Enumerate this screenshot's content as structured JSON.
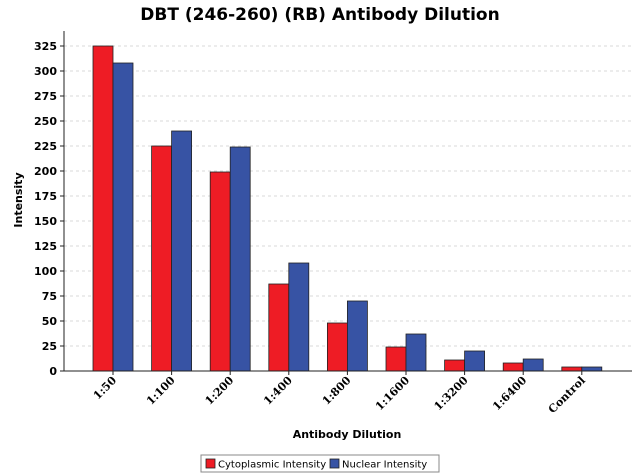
{
  "chart_data": {
    "type": "bar",
    "title": "DBT (246-260) (RB) Antibody Dilution",
    "xlabel": "Antibody Dilution",
    "ylabel": "Intensity",
    "ylim": [
      0,
      340
    ],
    "yticks": [
      0,
      25,
      50,
      75,
      100,
      125,
      150,
      175,
      200,
      225,
      250,
      275,
      300,
      325
    ],
    "categories": [
      "1:50",
      "1:100",
      "1:200",
      "1:400",
      "1:800",
      "1:1600",
      "1:3200",
      "1:6400",
      "Control"
    ],
    "series": [
      {
        "name": "Cytoplasmic Intensity",
        "color": "#ee1c25",
        "values": [
          325,
          225,
          199,
          87,
          48,
          24,
          11,
          8,
          4
        ]
      },
      {
        "name": "Nuclear Intensity",
        "color": "#3753a4",
        "values": [
          308,
          240,
          224,
          108,
          70,
          37,
          20,
          12,
          4
        ]
      }
    ],
    "grid": true,
    "legend_position": "bottom-center"
  }
}
